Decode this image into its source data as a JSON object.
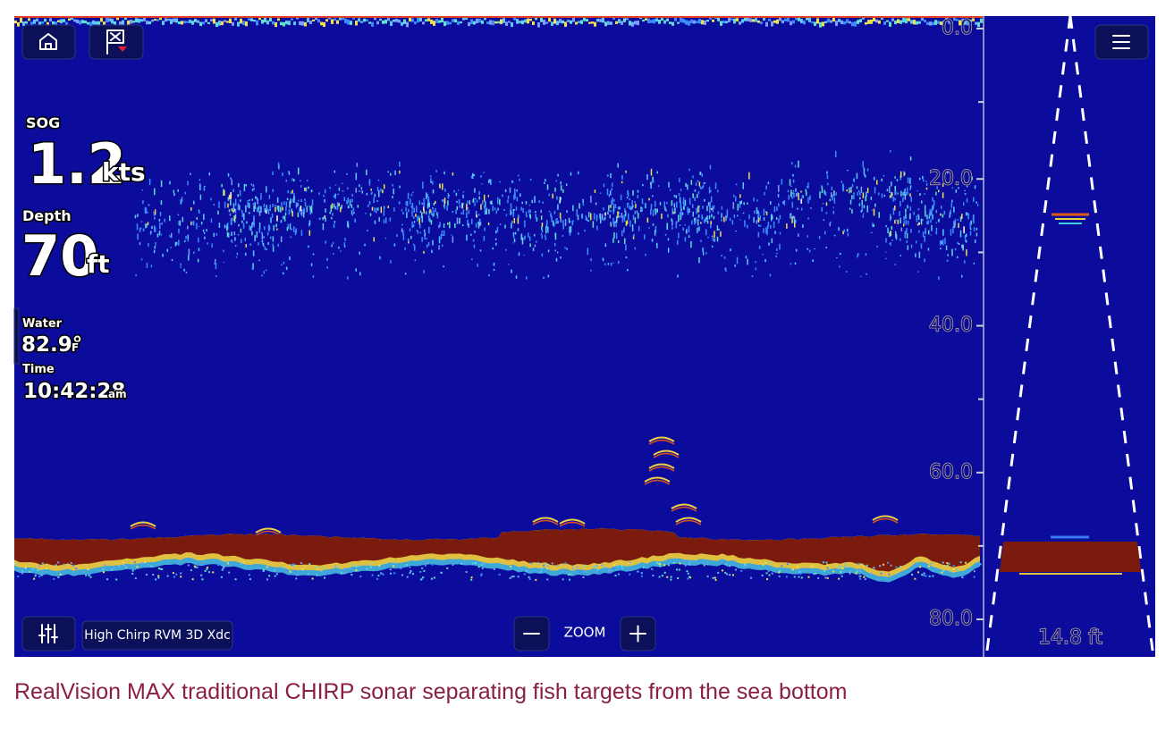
{
  "readouts": [
    {
      "label": "SOG",
      "value": "1.2",
      "unit": "kts"
    },
    {
      "label": "Depth",
      "value": "70",
      "unit": "ft"
    },
    {
      "label": "Water",
      "value": "82.9°",
      "unit": "F"
    },
    {
      "label": "Time",
      "value": "10:42:28",
      "unit": "am"
    }
  ],
  "depth_scale": [
    "0.0",
    "20.0",
    "40.0",
    "60.0",
    "80.0"
  ],
  "controls": {
    "source": "High Chirp RVM 3D Xdc",
    "zoom": "ZOOM"
  },
  "beam_width": "14.8 ft",
  "caption": "RealVision MAX traditional CHIRP sonar separating fish targets from the sea bottom"
}
